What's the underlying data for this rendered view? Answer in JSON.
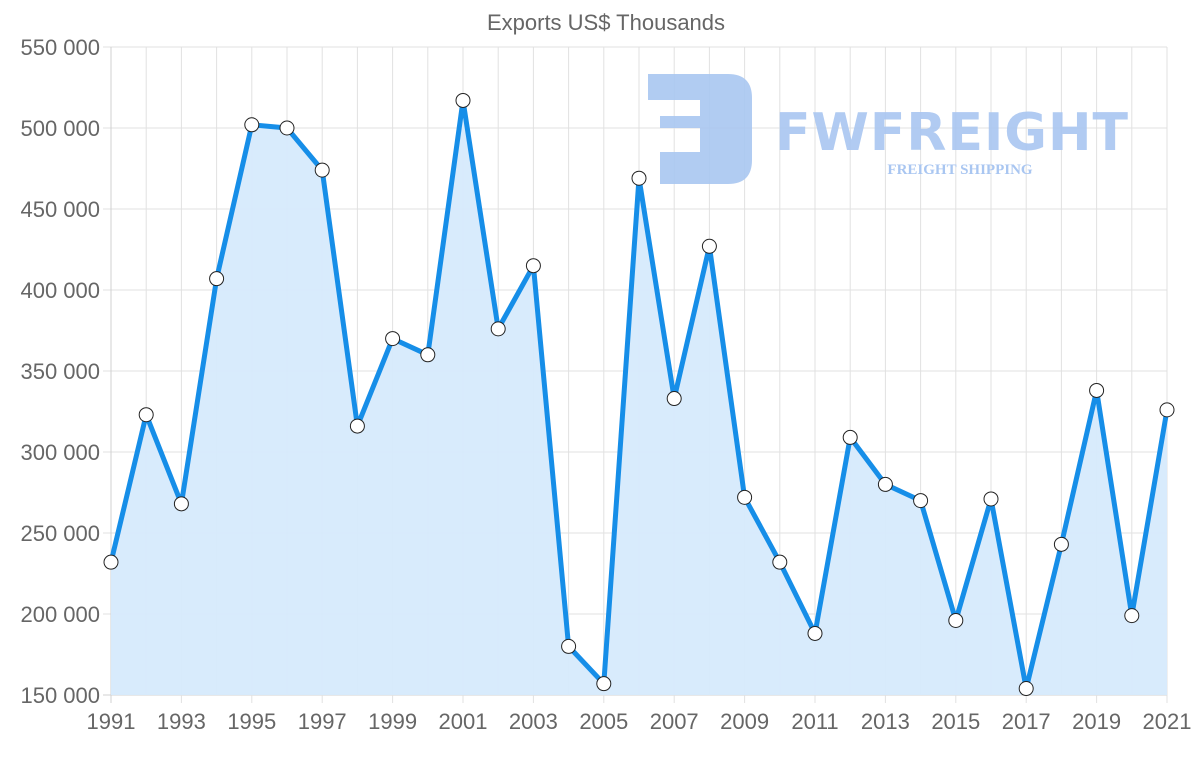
{
  "chart_data": {
    "type": "area",
    "title": "Exports US$ Thousands",
    "xlabel": "",
    "ylabel": "",
    "x": [
      1991,
      1992,
      1993,
      1994,
      1995,
      1996,
      1997,
      1998,
      1999,
      2000,
      2001,
      2002,
      2003,
      2004,
      2005,
      2006,
      2007,
      2008,
      2009,
      2010,
      2011,
      2012,
      2013,
      2014,
      2015,
      2016,
      2017,
      2018,
      2019,
      2020,
      2021
    ],
    "series": [
      {
        "name": "Exports",
        "values": [
          232000,
          323000,
          268000,
          407000,
          502000,
          500000,
          474000,
          316000,
          370000,
          360000,
          517000,
          376000,
          415000,
          180000,
          157000,
          469000,
          333000,
          427000,
          272000,
          232000,
          188000,
          309000,
          280000,
          270000,
          196000,
          271000,
          154000,
          243000,
          338000,
          199000,
          326000
        ],
        "color": "#168ee8",
        "fill": "#d6eafc"
      }
    ],
    "ylim": [
      150000,
      550000
    ],
    "yticks": [
      "150 000",
      "200 000",
      "250 000",
      "300 000",
      "350 000",
      "400 000",
      "450 000",
      "500 000",
      "550 000"
    ],
    "xticks": [
      "1991",
      "1993",
      "1995",
      "1997",
      "1999",
      "2001",
      "2003",
      "2005",
      "2007",
      "2009",
      "2011",
      "2013",
      "2015",
      "2017",
      "2019",
      "2021"
    ],
    "grid": true,
    "legend": "none"
  },
  "watermark": {
    "brand": "FWFREIGHT",
    "tagline": "FREIGHT SHIPPING",
    "color": "#a9c6f1"
  }
}
